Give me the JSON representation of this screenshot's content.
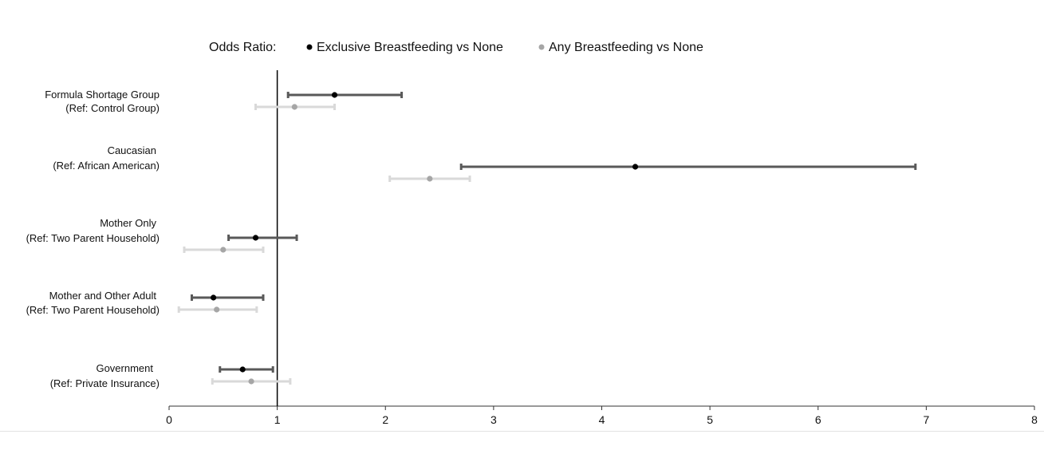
{
  "chart_data": {
    "type": "forest",
    "legend": {
      "title": "Odds Ratio:",
      "entries": [
        {
          "name": "Exclusive Breastfeeding vs None",
          "color": "#000000",
          "line_color": "#595959"
        },
        {
          "name": "Any Breastfeeding vs None",
          "color": "#a6a6a6",
          "line_color": "#d9d9d9"
        }
      ]
    },
    "reference_line": 1,
    "xlim": [
      0,
      8
    ],
    "xticks": [
      "0",
      "1",
      "2",
      "3",
      "4",
      "5",
      "6",
      "7",
      "8"
    ],
    "categories": [
      {
        "line1": "Formula Shortage Group",
        "line2": "(Ref: Control Group)"
      },
      {
        "line1": "Caucasian",
        "line2": "(Ref: African American)"
      },
      {
        "line1": "Mother Only",
        "line2": "(Ref: Two Parent Household)"
      },
      {
        "line1": "Mother and Other Adult",
        "line2": "(Ref: Two Parent Household)"
      },
      {
        "line1": "Government",
        "line2": "(Ref: Private Insurance)"
      }
    ],
    "series": [
      {
        "name": "Exclusive Breastfeeding vs None",
        "or": [
          1.53,
          4.31,
          0.8,
          0.41,
          0.68
        ],
        "lower": [
          1.1,
          2.7,
          0.55,
          0.21,
          0.47
        ],
        "upper": [
          2.15,
          6.9,
          1.18,
          0.87,
          0.96
        ]
      },
      {
        "name": "Any Breastfeeding vs None",
        "or": [
          1.16,
          2.41,
          0.5,
          0.44,
          0.76
        ],
        "lower": [
          0.8,
          2.04,
          0.14,
          0.09,
          0.4
        ],
        "upper": [
          1.53,
          2.78,
          0.87,
          0.81,
          1.12
        ]
      }
    ]
  }
}
